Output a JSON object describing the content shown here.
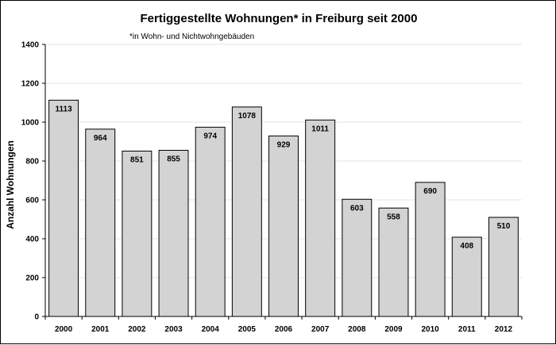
{
  "chart_data": {
    "type": "bar",
    "title": "Fertiggestellte Wohnungen* in Freiburg seit 2000",
    "subtitle": "*in Wohn- und Nichtwohngebäuden",
    "xlabel": "",
    "ylabel": "Anzahl Wohnungen",
    "categories": [
      "2000",
      "2001",
      "2002",
      "2003",
      "2004",
      "2005",
      "2006",
      "2007",
      "2008",
      "2009",
      "2010",
      "2011",
      "2012"
    ],
    "values": [
      1113,
      964,
      851,
      855,
      974,
      1078,
      929,
      1011,
      603,
      558,
      690,
      408,
      510
    ],
    "ylim": [
      0,
      1400
    ],
    "yticks": [
      0,
      200,
      400,
      600,
      800,
      1000,
      1200,
      1400
    ],
    "grid": true,
    "legend": "none",
    "colors": {
      "bar": "#d3d3d3",
      "bar_border": "#000000",
      "grid": "#e6e6e6"
    }
  }
}
